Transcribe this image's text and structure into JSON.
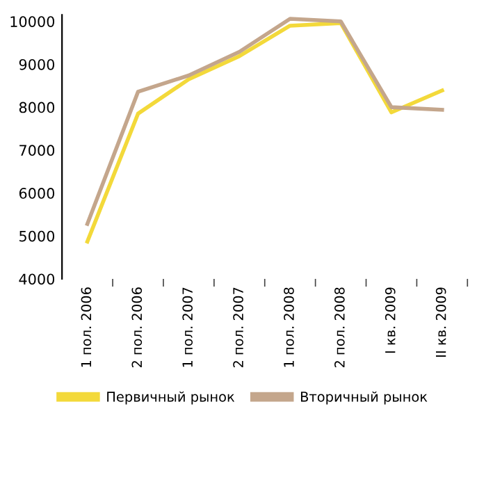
{
  "chart_data": {
    "type": "line",
    "categories": [
      "1 пол. 2006",
      "2 пол. 2006",
      "1 пол. 2007",
      "2 пол. 2007",
      "1 пол. 2008",
      "2 пол. 2008",
      "I кв. 2009",
      "II кв. 2009"
    ],
    "series": [
      {
        "name": "Первичный рынок",
        "color": "#f3d93a",
        "values": [
          4870,
          7850,
          8650,
          9190,
          9900,
          9960,
          7880,
          8390
        ]
      },
      {
        "name": "Вторичный рынок",
        "color": "#c4a68c",
        "values": [
          5280,
          8360,
          8740,
          9290,
          10060,
          10000,
          8000,
          7940
        ]
      }
    ],
    "ylim": [
      4000,
      10150
    ],
    "yticks": [
      4000,
      5000,
      6000,
      7000,
      8000,
      9000,
      10000
    ],
    "grid": false,
    "legend": "bottom",
    "marker": "none",
    "line_style": "solid"
  }
}
